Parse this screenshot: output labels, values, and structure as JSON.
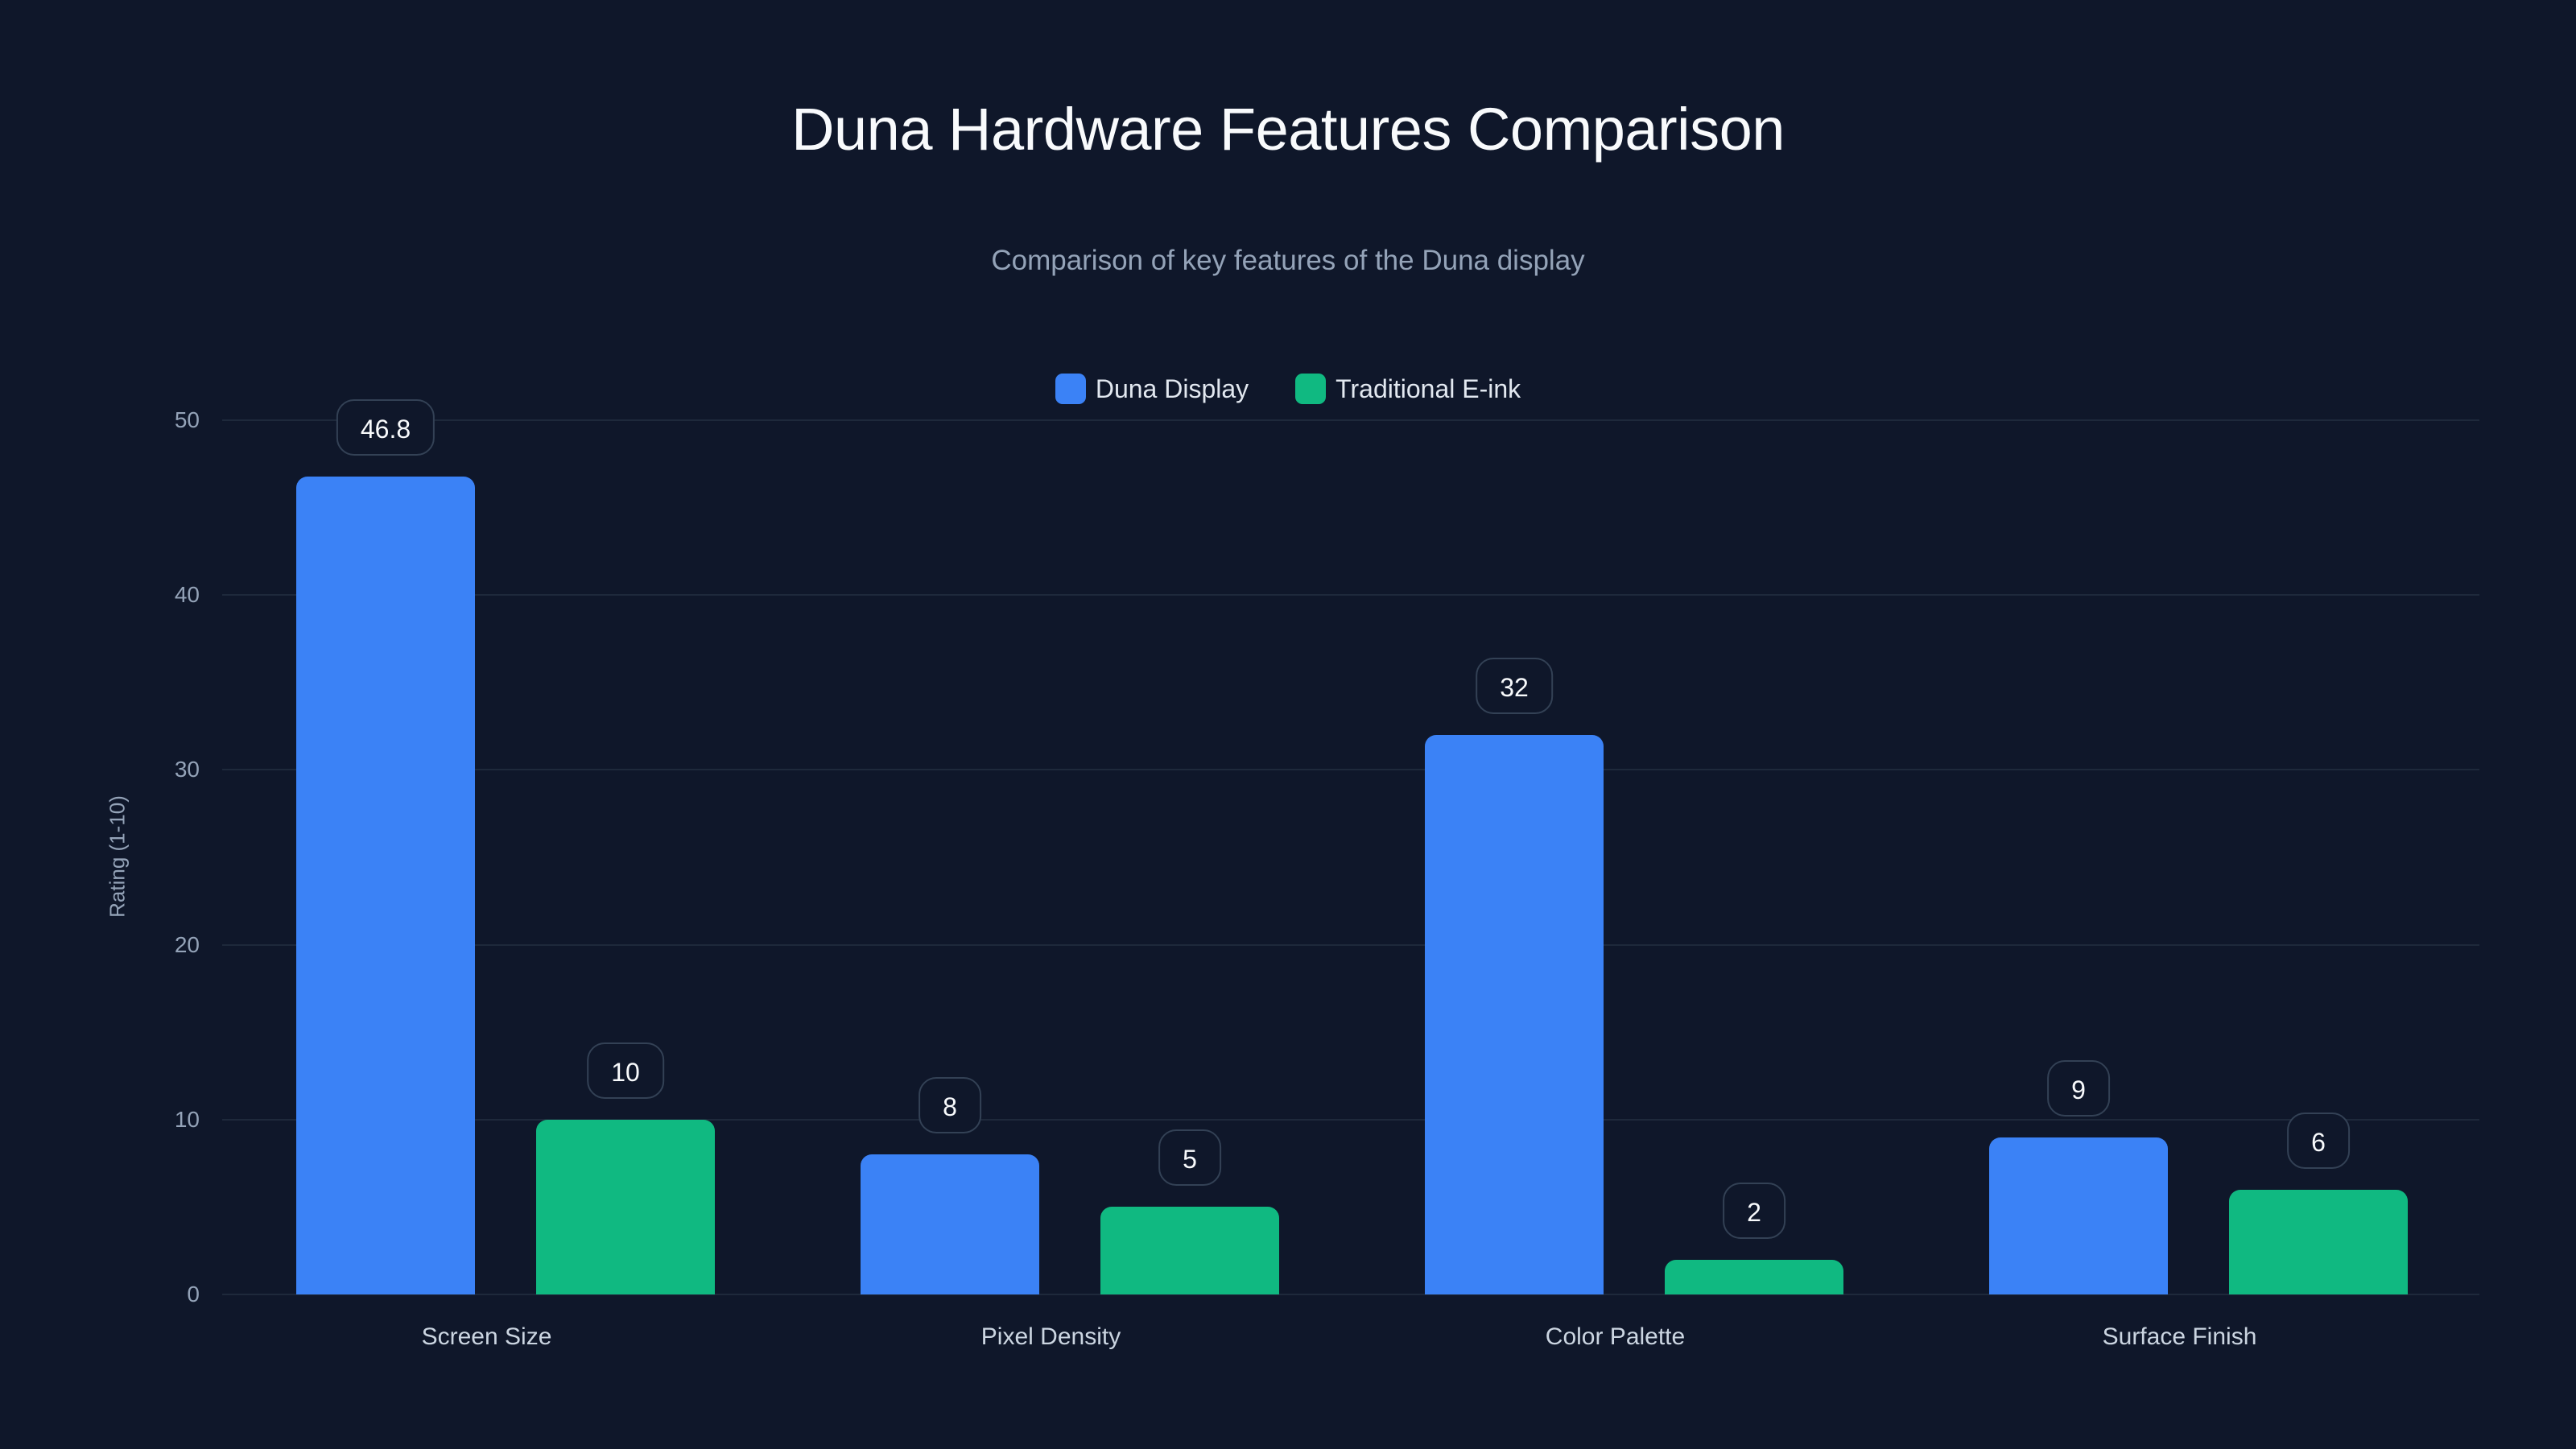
{
  "header": {
    "title": "Duna Hardware Features Comparison",
    "subtitle": "Comparison of key features of the Duna display"
  },
  "legend": [
    {
      "label": "Duna Display",
      "color": "#3b82f6"
    },
    {
      "label": "Traditional E-ink",
      "color": "#10b981"
    }
  ],
  "axes": {
    "ylabel": "Rating (1-10)",
    "yticks": [
      "0",
      "10",
      "20",
      "30",
      "40",
      "50"
    ]
  },
  "chart_data": {
    "type": "bar",
    "title": "Duna Hardware Features Comparison",
    "subtitle": "Comparison of key features of the Duna display",
    "categories": [
      "Screen Size",
      "Pixel Density",
      "Color Palette",
      "Surface Finish"
    ],
    "series": [
      {
        "name": "Duna Display",
        "color": "#3b82f6",
        "values": [
          46.8,
          8,
          32,
          9
        ]
      },
      {
        "name": "Traditional E-ink",
        "color": "#10b981",
        "values": [
          10,
          5,
          2,
          6
        ]
      }
    ],
    "xlabel": "",
    "ylabel": "Rating (1-10)",
    "ylim": [
      0,
      50
    ],
    "yticks": [
      0,
      10,
      20,
      30,
      40,
      50
    ],
    "grid": true,
    "legend_position": "top-center",
    "data_labels": true
  }
}
